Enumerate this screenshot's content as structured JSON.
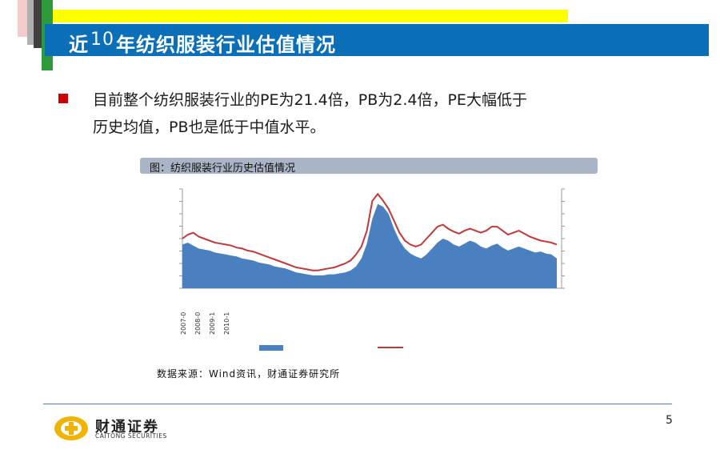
{
  "slide": {
    "title_prefix": "近",
    "title_num": "10",
    "title_suffix": "年纺织服装行业估值情况",
    "bullet_lines": [
      "目前整个纺织服装行业的PE为21.4倍，PB为2.4倍，PE大幅低于",
      "历史均值，PB也是低于中值水平。"
    ],
    "caption": "图：纺织服装行业历史估值情况",
    "source": "数据来源：Wind资讯，财通证券研究所",
    "page_number": "5"
  },
  "logo": {
    "cn": "财通证券",
    "en": "CAITONG SECURITIES"
  },
  "colors": {
    "title_bar": "#0b6fb8",
    "accent_yellow": "#ffff00",
    "bullet": "#cc0000",
    "area_series": "#4a7fc0",
    "line_series": "#c0393b",
    "logo_gold": "#f0b400"
  },
  "chart_data": {
    "type": "area",
    "x_tick_labels": [
      "2007-0",
      "2008-0",
      "2009-1",
      "2010-1"
    ],
    "grid": false,
    "legend": "bottom",
    "series": [
      {
        "style": "area",
        "color": "#4a7fc0",
        "values": [
          44,
          46,
          43,
          40,
          39,
          38,
          36,
          35,
          34,
          33,
          32,
          30,
          29,
          28,
          26,
          25,
          24,
          22,
          21,
          20,
          18,
          16,
          15,
          14,
          13,
          13,
          13,
          14,
          14,
          15,
          16,
          18,
          22,
          30,
          45,
          70,
          85,
          82,
          75,
          60,
          48,
          40,
          35,
          32,
          30,
          34,
          40,
          46,
          50,
          48,
          44,
          42,
          45,
          48,
          46,
          42,
          40,
          43,
          45,
          41,
          38,
          40,
          42,
          40,
          38,
          36,
          37,
          35,
          34,
          30
        ]
      },
      {
        "style": "line",
        "color": "#c0393b",
        "values": [
          50,
          54,
          56,
          52,
          50,
          48,
          46,
          45,
          44,
          43,
          41,
          40,
          38,
          37,
          35,
          33,
          31,
          29,
          27,
          25,
          23,
          21,
          20,
          19,
          18,
          18,
          19,
          20,
          21,
          23,
          25,
          28,
          34,
          42,
          58,
          88,
          95,
          88,
          80,
          68,
          56,
          48,
          44,
          42,
          44,
          50,
          56,
          62,
          64,
          60,
          57,
          55,
          58,
          60,
          58,
          56,
          58,
          62,
          62,
          58,
          54,
          56,
          58,
          55,
          52,
          50,
          48,
          47,
          46,
          44
        ]
      }
    ]
  }
}
